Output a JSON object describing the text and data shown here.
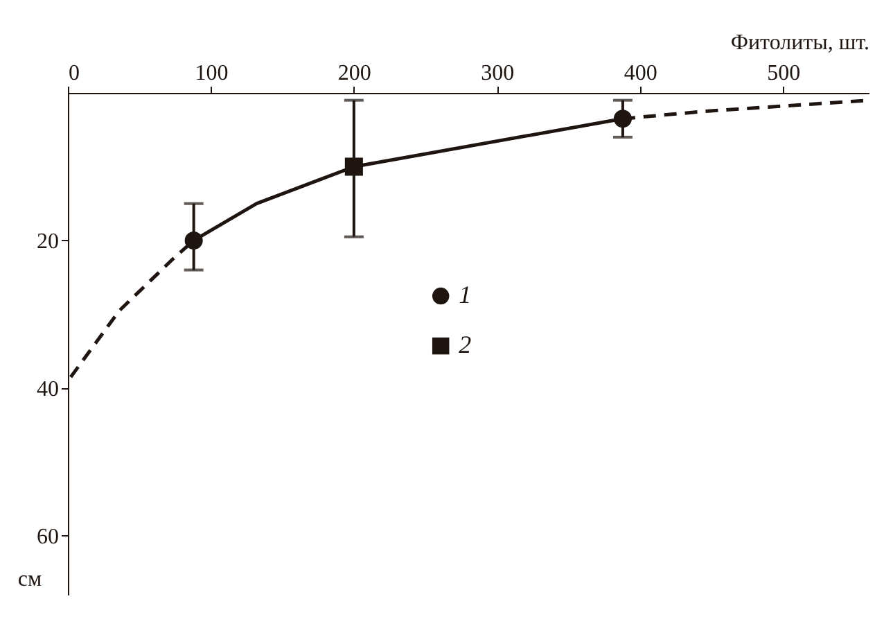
{
  "chart_data": {
    "type": "line",
    "xlabel": "Фитолиты, шт.",
    "ylabel": "см",
    "xlim": [
      0,
      560
    ],
    "xticks": [
      0,
      100,
      200,
      300,
      400,
      500
    ],
    "ylim": [
      68,
      0
    ],
    "yticks": [
      20,
      40,
      60
    ],
    "grid": false,
    "legend": "center",
    "series": [
      {
        "x": [
          88,
          132,
          200,
          388
        ],
        "values": [
          20,
          15,
          10,
          3.5
        ],
        "color": "#1e1410",
        "line_style": "solid",
        "marker": "none"
      },
      {
        "x": [
          2,
          36,
          74,
          88
        ],
        "values": [
          38.5,
          29.5,
          22.4,
          20
        ],
        "color": "#1e1410",
        "line_style": "dashed",
        "marker": "none"
      },
      {
        "x": [
          388,
          445,
          560
        ],
        "values": [
          3.5,
          2.5,
          1
        ],
        "color": "#1e1410",
        "line_style": "dashed",
        "marker": "none"
      },
      {
        "name": "1",
        "type": "scatter",
        "marker": "circle",
        "x": [
          88,
          388
        ],
        "values": [
          20,
          3.5
        ],
        "errors": [
          [
            15,
            24
          ],
          [
            1,
            6
          ]
        ],
        "color": "#1e1410"
      },
      {
        "name": "2",
        "type": "scatter",
        "marker": "square",
        "x": [
          200
        ],
        "values": [
          10
        ],
        "errors": [
          [
            1,
            19.5
          ]
        ],
        "color": "#1e1410"
      }
    ]
  }
}
